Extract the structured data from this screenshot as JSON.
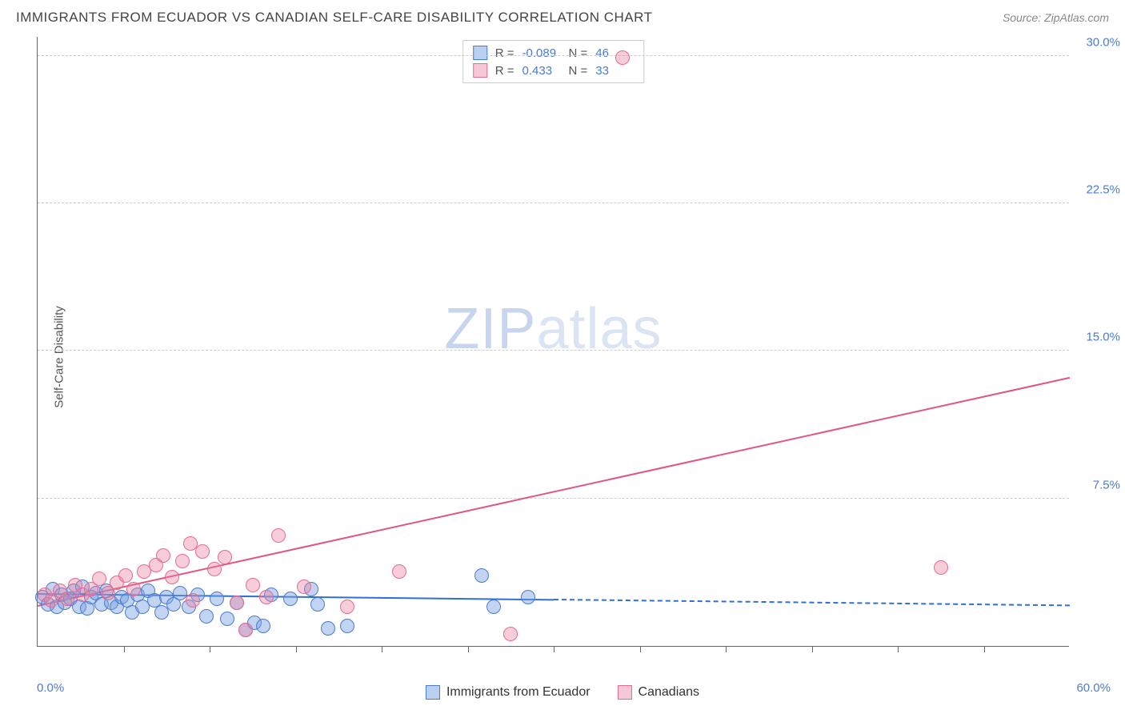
{
  "title": "IMMIGRANTS FROM ECUADOR VS CANADIAN SELF-CARE DISABILITY CORRELATION CHART",
  "source": "Source: ZipAtlas.com",
  "ylabel": "Self-Care Disability",
  "watermark_zip": "ZIP",
  "watermark_atlas": "atlas",
  "chart": {
    "type": "scatter",
    "xlim": [
      0,
      60
    ],
    "ylim": [
      0,
      31
    ],
    "xtick_min": "0.0%",
    "xtick_max": "60.0%",
    "xticks_minor": [
      5,
      10,
      15,
      20,
      25,
      30,
      35,
      40,
      45,
      50,
      55
    ],
    "yticks": [
      {
        "v": 7.5,
        "label": "7.5%"
      },
      {
        "v": 15.0,
        "label": "15.0%"
      },
      {
        "v": 22.5,
        "label": "22.5%"
      },
      {
        "v": 30.0,
        "label": "30.0%"
      }
    ],
    "series": [
      {
        "name": "Immigrants from Ecuador",
        "color_fill": "rgba(120,160,225,0.45)",
        "color_stroke": "#4a7bd0",
        "swatch_fill": "#b9d0f0",
        "swatch_border": "#4a7bd0",
        "marker_r": 9,
        "R": "-0.089",
        "N": "46",
        "trend": {
          "x1": 0,
          "y1": 2.6,
          "x2": 30,
          "y2": 2.3,
          "dash_to": 60,
          "color": "#2f6fd6"
        },
        "points": [
          [
            0.3,
            2.5
          ],
          [
            0.6,
            2.1
          ],
          [
            0.9,
            2.9
          ],
          [
            1.1,
            2.0
          ],
          [
            1.4,
            2.6
          ],
          [
            1.6,
            2.2
          ],
          [
            1.9,
            2.4
          ],
          [
            2.1,
            2.8
          ],
          [
            2.4,
            2.0
          ],
          [
            2.6,
            3.0
          ],
          [
            2.9,
            1.9
          ],
          [
            3.1,
            2.5
          ],
          [
            3.4,
            2.7
          ],
          [
            3.7,
            2.1
          ],
          [
            4.0,
            2.8
          ],
          [
            4.3,
            2.2
          ],
          [
            4.6,
            2.0
          ],
          [
            4.9,
            2.5
          ],
          [
            5.2,
            2.3
          ],
          [
            5.5,
            1.7
          ],
          [
            5.8,
            2.6
          ],
          [
            6.1,
            2.0
          ],
          [
            6.4,
            2.8
          ],
          [
            6.8,
            2.3
          ],
          [
            7.2,
            1.7
          ],
          [
            7.5,
            2.5
          ],
          [
            7.9,
            2.1
          ],
          [
            8.3,
            2.7
          ],
          [
            8.8,
            2.0
          ],
          [
            9.3,
            2.6
          ],
          [
            9.8,
            1.5
          ],
          [
            10.4,
            2.4
          ],
          [
            11.0,
            1.4
          ],
          [
            11.6,
            2.2
          ],
          [
            12.1,
            0.8
          ],
          [
            12.6,
            1.2
          ],
          [
            13.1,
            1.0
          ],
          [
            13.6,
            2.6
          ],
          [
            14.7,
            2.4
          ],
          [
            15.9,
            2.9
          ],
          [
            16.3,
            2.1
          ],
          [
            16.9,
            0.9
          ],
          [
            18.0,
            1.0
          ],
          [
            25.8,
            3.6
          ],
          [
            26.5,
            2.0
          ],
          [
            28.5,
            2.5
          ]
        ]
      },
      {
        "name": "Canadians",
        "color_fill": "rgba(235,130,160,0.40)",
        "color_stroke": "#e76a94",
        "swatch_fill": "#f6c7d6",
        "swatch_border": "#e76a94",
        "marker_r": 9,
        "R": "0.433",
        "N": "33",
        "trend": {
          "x1": 0,
          "y1": 2.0,
          "x2": 60,
          "y2": 13.6,
          "color": "#e05585"
        },
        "points": [
          [
            0.4,
            2.6
          ],
          [
            0.8,
            2.3
          ],
          [
            1.3,
            2.8
          ],
          [
            1.7,
            2.4
          ],
          [
            2.2,
            3.1
          ],
          [
            2.6,
            2.6
          ],
          [
            3.1,
            2.9
          ],
          [
            3.6,
            3.4
          ],
          [
            4.1,
            2.7
          ],
          [
            4.6,
            3.2
          ],
          [
            5.1,
            3.6
          ],
          [
            5.6,
            2.9
          ],
          [
            6.2,
            3.8
          ],
          [
            6.9,
            4.1
          ],
          [
            7.3,
            4.6
          ],
          [
            7.8,
            3.5
          ],
          [
            8.4,
            4.3
          ],
          [
            8.9,
            5.2
          ],
          [
            9.6,
            4.8
          ],
          [
            10.3,
            3.9
          ],
          [
            10.9,
            4.5
          ],
          [
            11.6,
            2.2
          ],
          [
            12.1,
            0.8
          ],
          [
            12.5,
            3.1
          ],
          [
            13.3,
            2.5
          ],
          [
            14.0,
            5.6
          ],
          [
            15.5,
            3.0
          ],
          [
            18.0,
            2.0
          ],
          [
            21.0,
            3.8
          ],
          [
            27.5,
            0.6
          ],
          [
            34.0,
            29.9
          ],
          [
            52.5,
            4.0
          ],
          [
            9.0,
            2.3
          ]
        ]
      }
    ],
    "legend_bottom": [
      {
        "label": "Immigrants from Ecuador"
      },
      {
        "label": "Canadians"
      }
    ]
  }
}
